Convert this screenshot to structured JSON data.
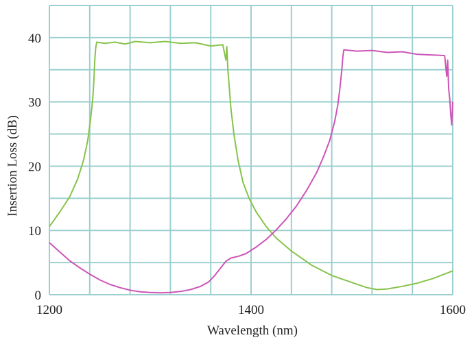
{
  "chart_data": {
    "type": "line",
    "title": "",
    "xlabel": "Wavelength (nm)",
    "ylabel": "Insertion Loss (dB)",
    "xlim": [
      1200,
      1600
    ],
    "ylim": [
      0,
      45
    ],
    "x_ticks": [
      1200,
      1400,
      1600
    ],
    "y_ticks": [
      0,
      10,
      20,
      30,
      40
    ],
    "grid": true,
    "grid_x_step": 40,
    "grid_y_step": 5,
    "grid_color": "#9ccfcf",
    "legend": "none",
    "series": [
      {
        "color": "#86c34a",
        "points": [
          [
            1200,
            10.6
          ],
          [
            1210,
            12.8
          ],
          [
            1220,
            15.2
          ],
          [
            1228,
            18.0
          ],
          [
            1234,
            21.0
          ],
          [
            1238,
            24.0
          ],
          [
            1241,
            27.5
          ],
          [
            1243,
            30.5
          ],
          [
            1244,
            33.0
          ],
          [
            1245,
            36.5
          ],
          [
            1246,
            38.5
          ],
          [
            1247,
            39.3
          ],
          [
            1255,
            39.1
          ],
          [
            1265,
            39.3
          ],
          [
            1275,
            39.0
          ],
          [
            1285,
            39.4
          ],
          [
            1300,
            39.2
          ],
          [
            1315,
            39.4
          ],
          [
            1330,
            39.1
          ],
          [
            1345,
            39.2
          ],
          [
            1360,
            38.7
          ],
          [
            1372,
            38.9
          ],
          [
            1375,
            36.5
          ],
          [
            1376,
            38.6
          ],
          [
            1377,
            35.0
          ],
          [
            1378,
            33.0
          ],
          [
            1380,
            29.0
          ],
          [
            1383,
            25.0
          ],
          [
            1387,
            21.0
          ],
          [
            1392,
            17.5
          ],
          [
            1398,
            15.0
          ],
          [
            1405,
            12.9
          ],
          [
            1415,
            10.6
          ],
          [
            1425,
            8.8
          ],
          [
            1440,
            6.8
          ],
          [
            1460,
            4.6
          ],
          [
            1480,
            3.0
          ],
          [
            1500,
            1.9
          ],
          [
            1515,
            1.1
          ],
          [
            1525,
            0.8
          ],
          [
            1535,
            0.9
          ],
          [
            1550,
            1.3
          ],
          [
            1565,
            1.8
          ],
          [
            1580,
            2.5
          ],
          [
            1590,
            3.1
          ],
          [
            1600,
            3.7
          ]
        ]
      },
      {
        "color": "#cc55b8",
        "points": [
          [
            1200,
            8.1
          ],
          [
            1210,
            6.7
          ],
          [
            1220,
            5.3
          ],
          [
            1230,
            4.2
          ],
          [
            1240,
            3.2
          ],
          [
            1250,
            2.3
          ],
          [
            1260,
            1.6
          ],
          [
            1270,
            1.1
          ],
          [
            1280,
            0.7
          ],
          [
            1290,
            0.45
          ],
          [
            1300,
            0.35
          ],
          [
            1310,
            0.3
          ],
          [
            1320,
            0.35
          ],
          [
            1330,
            0.5
          ],
          [
            1340,
            0.8
          ],
          [
            1350,
            1.3
          ],
          [
            1358,
            2.0
          ],
          [
            1364,
            3.0
          ],
          [
            1370,
            4.2
          ],
          [
            1375,
            5.2
          ],
          [
            1380,
            5.7
          ],
          [
            1388,
            6.0
          ],
          [
            1395,
            6.4
          ],
          [
            1405,
            7.4
          ],
          [
            1415,
            8.6
          ],
          [
            1425,
            10.1
          ],
          [
            1435,
            11.8
          ],
          [
            1445,
            13.8
          ],
          [
            1455,
            16.2
          ],
          [
            1465,
            19.0
          ],
          [
            1472,
            21.5
          ],
          [
            1478,
            24.0
          ],
          [
            1483,
            27.0
          ],
          [
            1486,
            29.5
          ],
          [
            1488,
            32.0
          ],
          [
            1490,
            35.0
          ],
          [
            1491,
            37.0
          ],
          [
            1492,
            38.1
          ],
          [
            1505,
            37.9
          ],
          [
            1520,
            38.0
          ],
          [
            1535,
            37.7
          ],
          [
            1550,
            37.8
          ],
          [
            1565,
            37.4
          ],
          [
            1580,
            37.3
          ],
          [
            1592,
            37.2
          ],
          [
            1594,
            34.0
          ],
          [
            1595,
            36.5
          ],
          [
            1596,
            32.0
          ],
          [
            1597,
            30.5
          ],
          [
            1598,
            28.0
          ],
          [
            1599,
            26.4
          ],
          [
            1600,
            30.0
          ]
        ]
      }
    ]
  }
}
